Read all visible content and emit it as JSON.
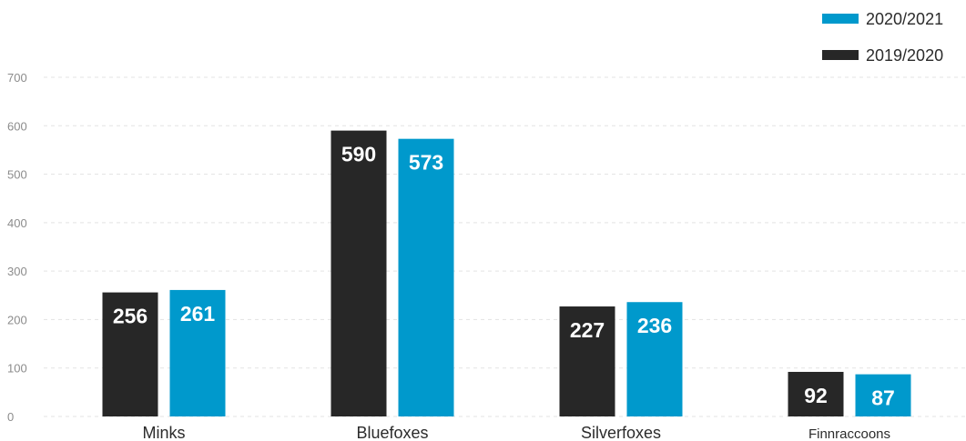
{
  "chart_data": {
    "type": "bar",
    "categories": [
      "Minks",
      "Bluefoxes",
      "Silverfoxes",
      "Finnraccoons"
    ],
    "series": [
      {
        "name": "2019/2020",
        "color": "#272727",
        "values": [
          256,
          590,
          227,
          92
        ]
      },
      {
        "name": "2020/2021",
        "color": "#0099cc",
        "values": [
          261,
          573,
          236,
          87
        ]
      }
    ],
    "ylim": [
      0,
      700
    ],
    "yticks": [
      0,
      100,
      200,
      300,
      400,
      500,
      600,
      700
    ],
    "grid": true,
    "legend_position": "top-right",
    "legend_order": [
      "2020/2021",
      "2019/2020"
    ],
    "data_labels": true
  }
}
